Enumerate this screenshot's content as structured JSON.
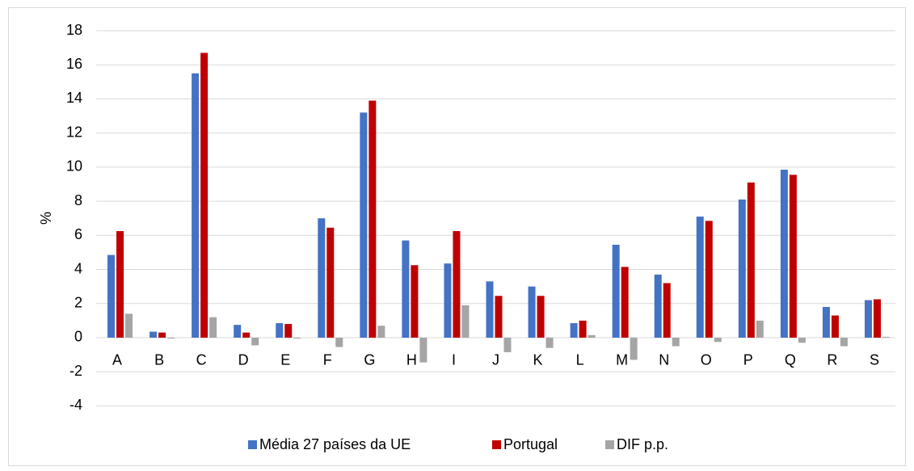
{
  "chart_data": {
    "type": "bar",
    "y_label": "%",
    "categories": [
      "A",
      "B",
      "C",
      "D",
      "E",
      "F",
      "G",
      "H",
      "I",
      "J",
      "K",
      "L",
      "M",
      "N",
      "O",
      "P",
      "Q",
      "R",
      "S"
    ],
    "series": [
      {
        "name": "Média 27 países da UE",
        "color": "#4472c4",
        "values": [
          4.85,
          0.35,
          15.5,
          0.75,
          0.85,
          7.0,
          13.2,
          5.7,
          4.35,
          3.3,
          3.0,
          0.85,
          5.45,
          3.7,
          7.1,
          8.1,
          9.85,
          1.8,
          2.2
        ]
      },
      {
        "name": "Portugal",
        "color": "#c00000",
        "values": [
          6.25,
          0.3,
          16.7,
          0.3,
          0.8,
          6.45,
          13.9,
          4.25,
          6.25,
          2.45,
          2.45,
          1.0,
          4.15,
          3.2,
          6.85,
          9.1,
          9.55,
          1.3,
          2.25
        ]
      },
      {
        "name": "DIF p.p.",
        "color": "#a5a5a5",
        "values": [
          1.4,
          -0.05,
          1.2,
          -0.45,
          -0.05,
          -0.55,
          0.7,
          -1.45,
          1.9,
          -0.85,
          -0.6,
          0.15,
          -1.3,
          -0.5,
          -0.25,
          1.0,
          -0.3,
          -0.5,
          0.05
        ]
      }
    ],
    "ylim": [
      -4,
      18
    ],
    "yticks": [
      -4,
      -2,
      0,
      2,
      4,
      6,
      8,
      10,
      12,
      14,
      16,
      18
    ],
    "grid": true,
    "legend": "bottom"
  }
}
